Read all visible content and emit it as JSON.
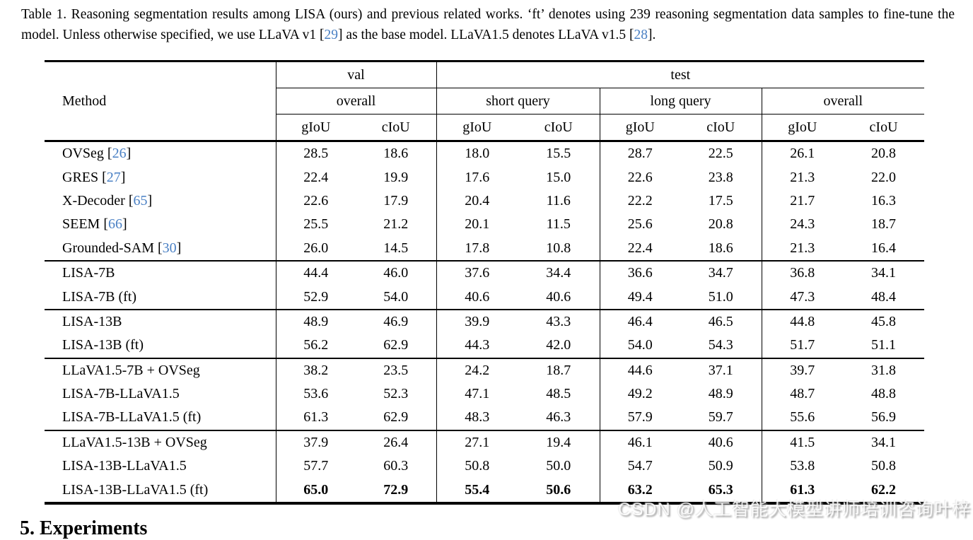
{
  "colors": {
    "citation_link": "#4a80c4",
    "background": "#ffffff",
    "text": "#000000"
  },
  "caption": {
    "segments": [
      {
        "text": "Table 1. Reasoning segmentation results among LISA (ours) and previous related works. ‘ft’ denotes using 239 reasoning segmentation data samples to fine-tune the model. Unless otherwise specified, we use LLaVA v1 [",
        "link": false
      },
      {
        "text": "29",
        "link": true
      },
      {
        "text": "] as the base model. LLaVA1.5 denotes LLaVA v1.5 [",
        "link": false
      },
      {
        "text": "28",
        "link": true
      },
      {
        "text": "].",
        "link": false
      }
    ]
  },
  "table": {
    "method_header": "Method",
    "top_headers": [
      {
        "label": "val",
        "span": 2
      },
      {
        "label": "test",
        "span": 6
      }
    ],
    "sub_headers": [
      "overall",
      "short query",
      "long query",
      "overall"
    ],
    "metric_headers": [
      "gIoU",
      "cIoU",
      "gIoU",
      "cIoU",
      "gIoU",
      "cIoU",
      "gIoU",
      "cIoU"
    ],
    "rows": [
      {
        "method": "OVSeg",
        "cite": "26",
        "cite_prefix": " [",
        "cite_suffix": "]",
        "values": [
          "28.5",
          "18.6",
          "18.0",
          "15.5",
          "28.7",
          "22.5",
          "26.1",
          "20.8"
        ],
        "new_group": false,
        "bold_values": false
      },
      {
        "method": "GRES",
        "cite": "27",
        "cite_prefix": " [",
        "cite_suffix": "]",
        "values": [
          "22.4",
          "19.9",
          "17.6",
          "15.0",
          "22.6",
          "23.8",
          "21.3",
          "22.0"
        ],
        "new_group": false,
        "bold_values": false
      },
      {
        "method": "X-Decoder",
        "cite": "65",
        "cite_prefix": " [",
        "cite_suffix": "]",
        "values": [
          "22.6",
          "17.9",
          "20.4",
          "11.6",
          "22.2",
          "17.5",
          "21.7",
          "16.3"
        ],
        "new_group": false,
        "bold_values": false
      },
      {
        "method": "SEEM",
        "cite": "66",
        "cite_prefix": " [",
        "cite_suffix": "]",
        "values": [
          "25.5",
          "21.2",
          "20.1",
          "11.5",
          "25.6",
          "20.8",
          "24.3",
          "18.7"
        ],
        "new_group": false,
        "bold_values": false
      },
      {
        "method": "Grounded-SAM",
        "cite": "30",
        "cite_prefix": " [",
        "cite_suffix": "]",
        "values": [
          "26.0",
          "14.5",
          "17.8",
          "10.8",
          "22.4",
          "18.6",
          "21.3",
          "16.4"
        ],
        "new_group": false,
        "bold_values": false
      },
      {
        "method": "LISA-7B",
        "values": [
          "44.4",
          "46.0",
          "37.6",
          "34.4",
          "36.6",
          "34.7",
          "36.8",
          "34.1"
        ],
        "new_group": true,
        "bold_values": false
      },
      {
        "method": "LISA-7B (ft)",
        "values": [
          "52.9",
          "54.0",
          "40.6",
          "40.6",
          "49.4",
          "51.0",
          "47.3",
          "48.4"
        ],
        "new_group": false,
        "bold_values": false
      },
      {
        "method": "LISA-13B",
        "values": [
          "48.9",
          "46.9",
          "39.9",
          "43.3",
          "46.4",
          "46.5",
          "44.8",
          "45.8"
        ],
        "new_group": true,
        "bold_values": false
      },
      {
        "method": "LISA-13B (ft)",
        "values": [
          "56.2",
          "62.9",
          "44.3",
          "42.0",
          "54.0",
          "54.3",
          "51.7",
          "51.1"
        ],
        "new_group": false,
        "bold_values": false
      },
      {
        "method": "LLaVA1.5-7B + OVSeg",
        "values": [
          "38.2",
          "23.5",
          "24.2",
          "18.7",
          "44.6",
          "37.1",
          "39.7",
          "31.8"
        ],
        "new_group": true,
        "bold_values": false
      },
      {
        "method": "LISA-7B-LLaVA1.5",
        "values": [
          "53.6",
          "52.3",
          "47.1",
          "48.5",
          "49.2",
          "48.9",
          "48.7",
          "48.8"
        ],
        "new_group": false,
        "bold_values": false
      },
      {
        "method": "LISA-7B-LLaVA1.5 (ft)",
        "values": [
          "61.3",
          "62.9",
          "48.3",
          "46.3",
          "57.9",
          "59.7",
          "55.6",
          "56.9"
        ],
        "new_group": false,
        "bold_values": false
      },
      {
        "method": "LLaVA1.5-13B + OVSeg",
        "values": [
          "37.9",
          "26.4",
          "27.1",
          "19.4",
          "46.1",
          "40.6",
          "41.5",
          "34.1"
        ],
        "new_group": true,
        "bold_values": false
      },
      {
        "method": "LISA-13B-LLaVA1.5",
        "values": [
          "57.7",
          "60.3",
          "50.8",
          "50.0",
          "54.7",
          "50.9",
          "53.8",
          "50.8"
        ],
        "new_group": false,
        "bold_values": false
      },
      {
        "method": "LISA-13B-LLaVA1.5 (ft)",
        "values": [
          "65.0",
          "72.9",
          "55.4",
          "50.6",
          "63.2",
          "65.3",
          "61.3",
          "62.2"
        ],
        "new_group": false,
        "bold_values": true
      }
    ]
  },
  "watermark": {
    "text": "CSDN @人工智能大模型讲师培训咨询叶梓"
  },
  "next_section": {
    "heading": "5. Experiments"
  }
}
